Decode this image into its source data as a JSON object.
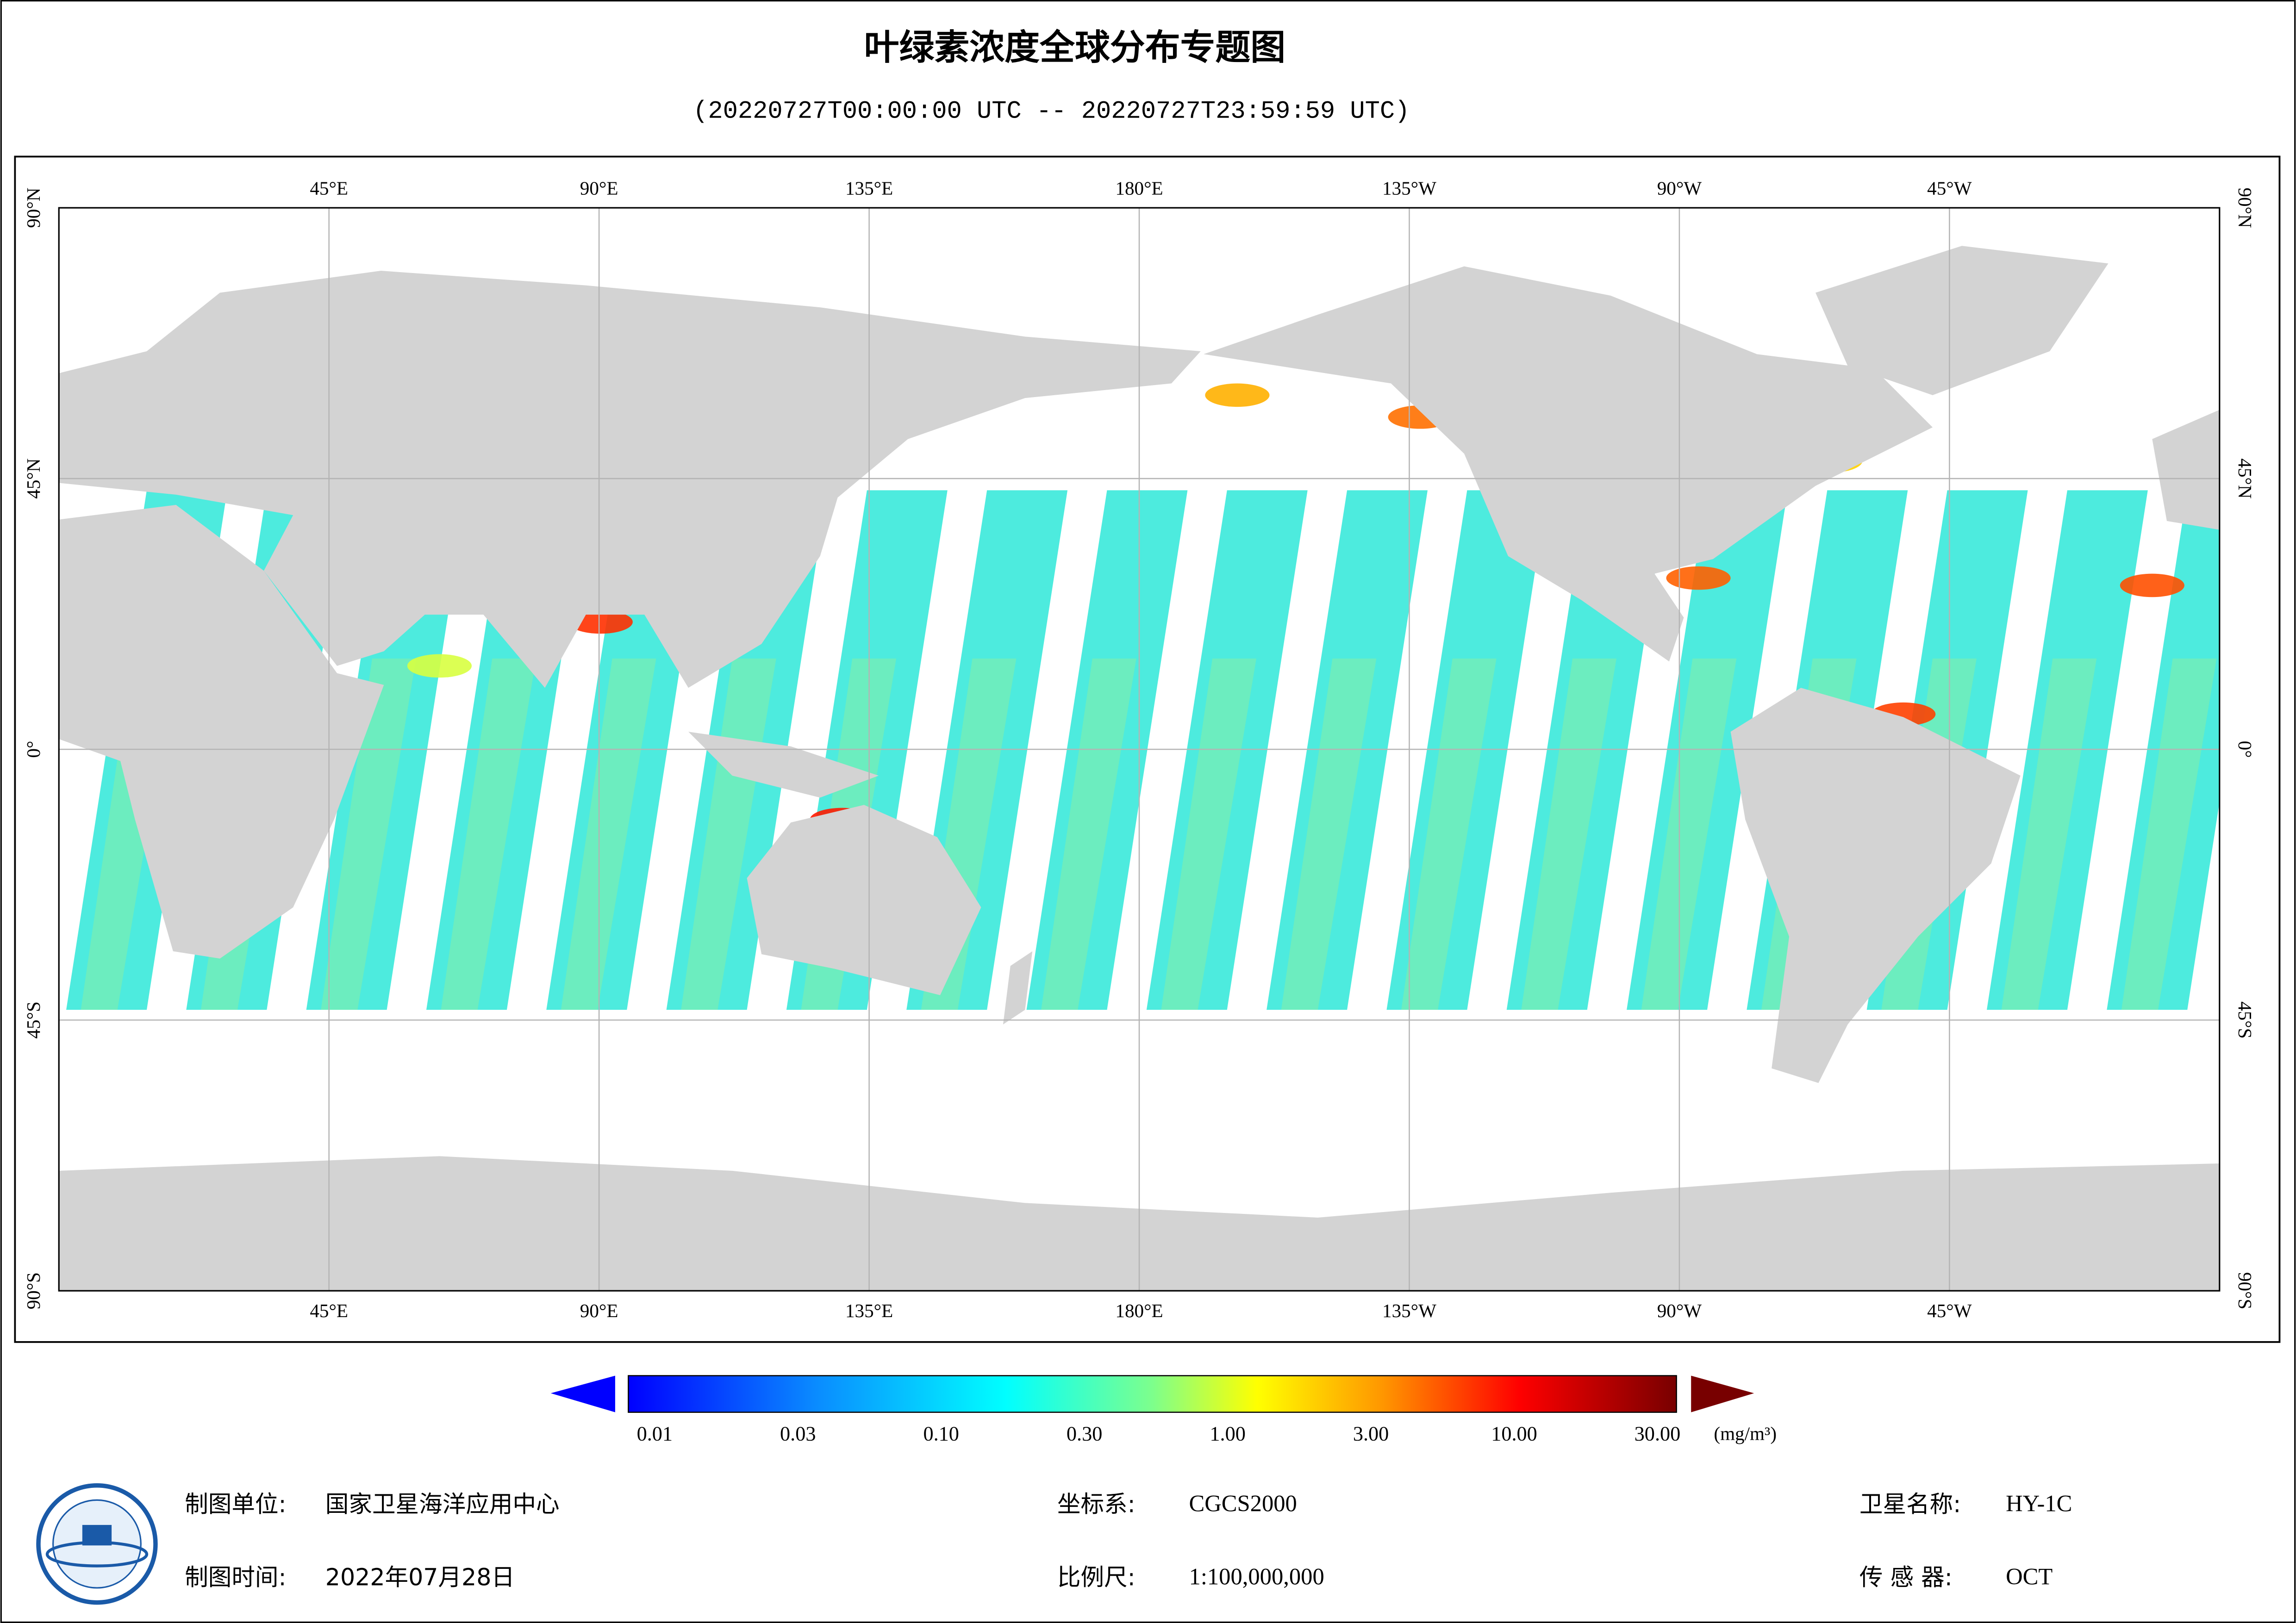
{
  "header": {
    "title": "叶绿素浓度全球分布专题图",
    "subtitle": "(20220727T00:00:00 UTC -- 20220727T23:59:59 UTC)"
  },
  "map": {
    "lon_labels": [
      "45°E",
      "90°E",
      "135°E",
      "180°E",
      "135°W",
      "90°W",
      "45°W"
    ],
    "lat_labels": [
      "90°N",
      "45°N",
      "0°",
      "45°S",
      "90°S"
    ]
  },
  "colorbar": {
    "labels": [
      "0.01",
      "0.03",
      "0.10",
      "0.30",
      "1.00",
      "3.00",
      "10.00",
      "30.00"
    ],
    "unit": "(mg/m³)"
  },
  "footer": {
    "unit_label": "制图单位:",
    "unit": "国家卫星海洋应用中心",
    "time_label": "制图时间:",
    "time": "2022年07月28日",
    "crs_label": "坐标系:",
    "crs": "CGCS2000",
    "scale_label": "比例尺:",
    "scale": "1:100,000,000",
    "satellite_label": "卫星名称:",
    "satellite": "HY-1C",
    "sensor_label": "传 感 器:",
    "sensor": "OCT"
  }
}
